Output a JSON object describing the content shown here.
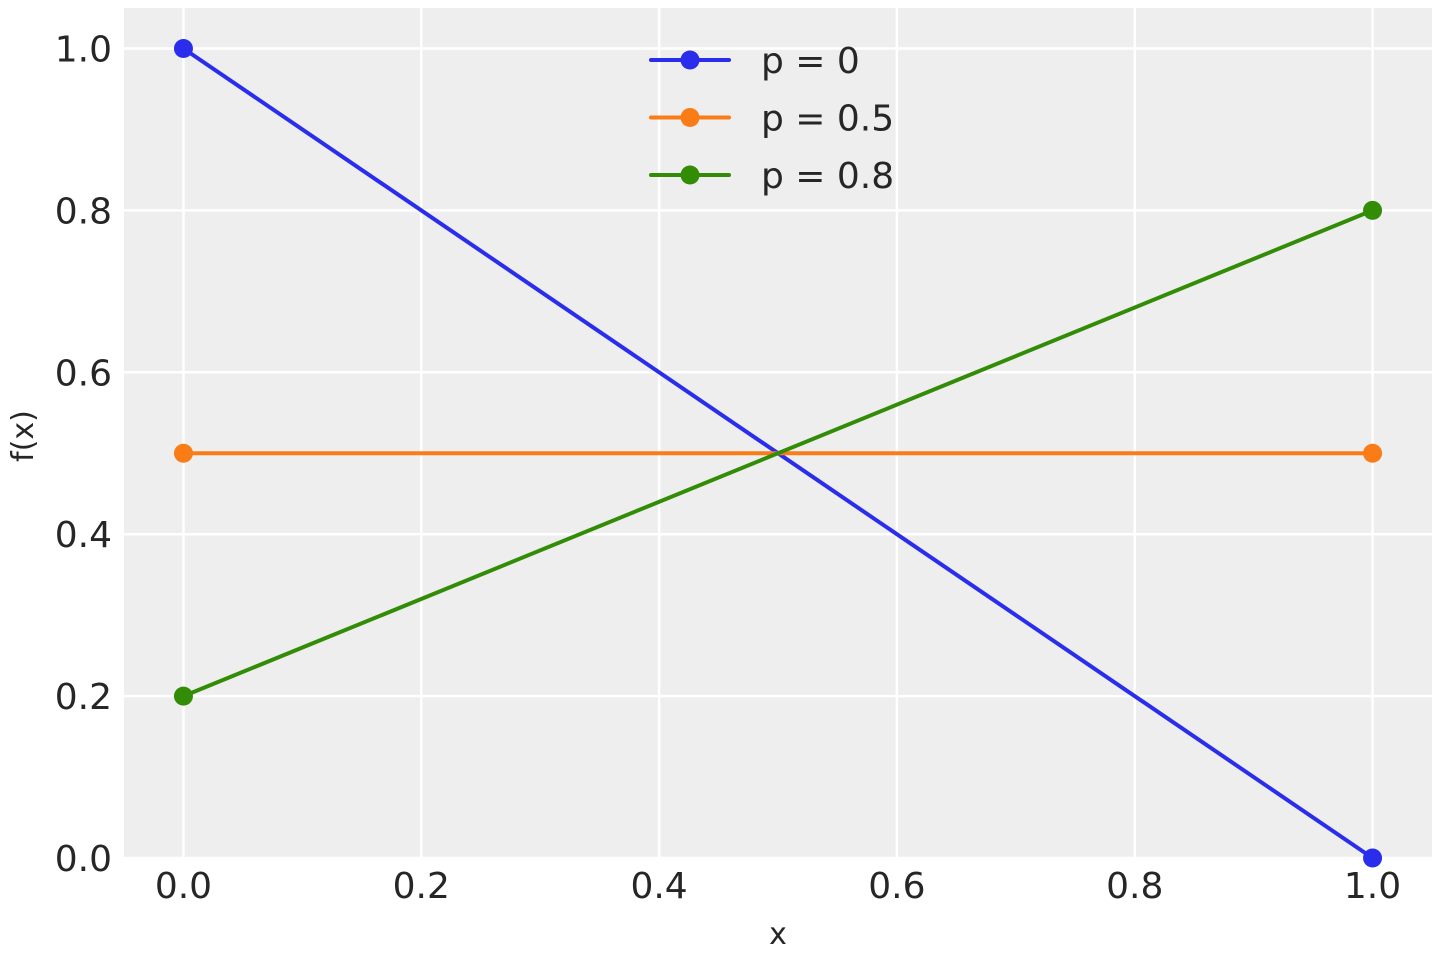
{
  "chart_data": {
    "type": "line",
    "title": "",
    "xlabel": "x",
    "ylabel": "f(x)",
    "xlim": [
      -0.05,
      1.05
    ],
    "ylim": [
      0,
      1.05
    ],
    "xticks": [
      "0.0",
      "0.2",
      "0.4",
      "0.6",
      "0.8",
      "1.0"
    ],
    "yticks": [
      "0.0",
      "0.2",
      "0.4",
      "0.6",
      "0.8",
      "1.0"
    ],
    "grid": true,
    "background": "#eeeeee",
    "legend_position": "top-center",
    "x": [
      0,
      1
    ],
    "series": [
      {
        "name": "p = 0",
        "values": [
          1.0,
          0.0
        ],
        "color": "#2a2eec",
        "marker": "circle"
      },
      {
        "name": "p = 0.5",
        "values": [
          0.5,
          0.5
        ],
        "color": "#fa7c17",
        "marker": "circle"
      },
      {
        "name": "p = 0.8",
        "values": [
          0.2,
          0.8
        ],
        "color": "#328c06",
        "marker": "circle"
      }
    ]
  }
}
